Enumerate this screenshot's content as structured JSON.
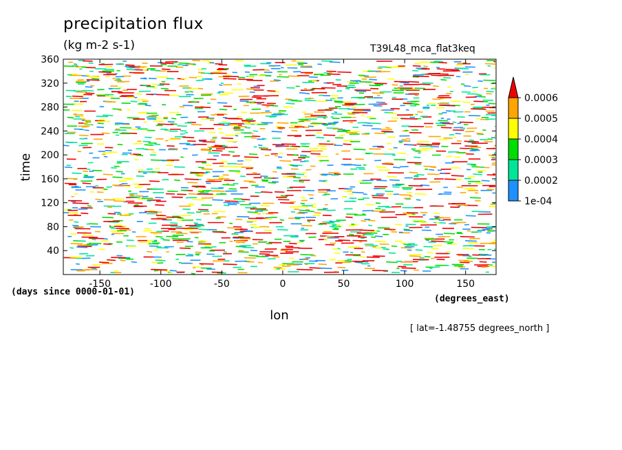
{
  "chart_data": {
    "type": "heatmap",
    "title": "precipitation flux",
    "subtitle": "(kg m-2 s-1)",
    "run_label": "T39L48_mca_flat3keq",
    "xlabel": "lon",
    "xunits": "(degrees_east)",
    "ylabel": "time",
    "yunits": "(days since 0000-01-01)",
    "note": "[ lat=-1.48755 degrees_north ]",
    "xlim": [
      -180,
      175
    ],
    "ylim": [
      0,
      360
    ],
    "x_ticks": [
      -150,
      -100,
      -50,
      0,
      50,
      100,
      150
    ],
    "x_tick_labels": [
      "-150",
      "-100",
      "-50",
      "0",
      "50",
      "100",
      "150"
    ],
    "y_ticks": [
      40,
      80,
      120,
      160,
      200,
      240,
      280,
      320,
      360
    ],
    "y_tick_labels": [
      "40",
      "80",
      "120",
      "160",
      "200",
      "240",
      "280",
      "320",
      "360"
    ],
    "colorbar": {
      "levels": [
        0.0001,
        0.0002,
        0.0003,
        0.0004,
        0.0005,
        0.0006
      ],
      "level_labels": [
        "1e-04",
        "0.0002",
        "0.0003",
        "0.0004",
        "0.0005",
        "0.0006"
      ],
      "colors": [
        "#1e90ff",
        "#00e699",
        "#00dd00",
        "#ffff00",
        "#ffa500",
        "#ee0000"
      ],
      "extend": "max"
    },
    "pattern": "scattered short eastward-propagating streaks at all longitudes; strongest (red) clusters near lon 0 around days 40, 140, 190, 220 and 300"
  }
}
